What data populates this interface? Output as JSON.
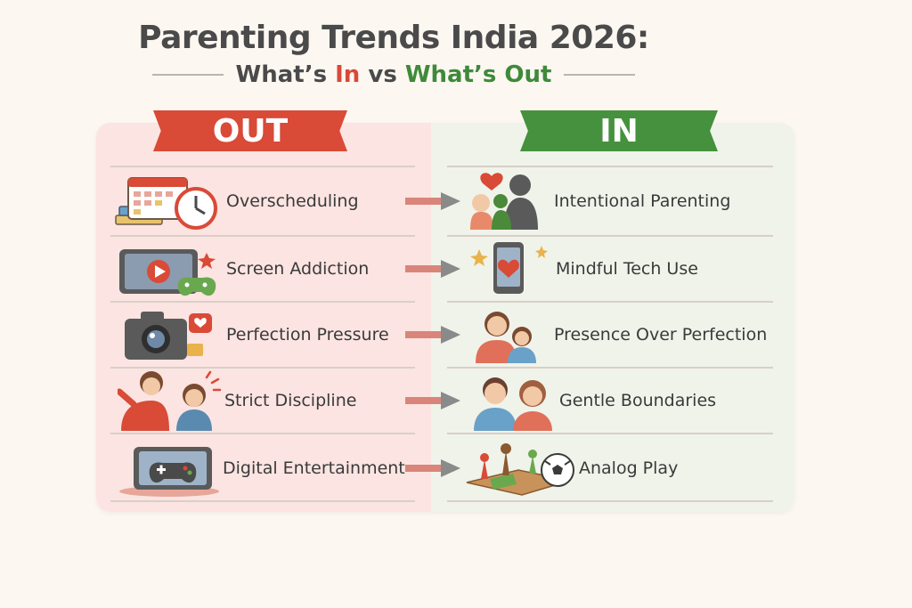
{
  "header": {
    "title": "Parenting Trends India 2026:",
    "subtitle_part1": "What’s ",
    "subtitle_in": "In",
    "subtitle_vs": " vs ",
    "subtitle_out": "What’s Out"
  },
  "columns": {
    "out_label": "OUT",
    "in_label": "IN"
  },
  "rows": [
    {
      "out": "Overscheduling",
      "in": "Intentional Parenting",
      "out_icon": "calendar-clock-books-icon",
      "in_icon": "parent-hugging-child-icon"
    },
    {
      "out": "Screen Addiction",
      "in": "Mindful Tech Use",
      "out_icon": "tablet-video-gamepad-icon",
      "in_icon": "phone-heart-icon"
    },
    {
      "out": "Perfection Pressure",
      "in": "Presence Over Perfection",
      "out_icon": "camera-like-icon",
      "in_icon": "mother-child-cuddle-icon"
    },
    {
      "out": "Strict Discipline",
      "in": "Gentle Boundaries",
      "out_icon": "scolding-parent-icon",
      "in_icon": "happy-parent-child-icon"
    },
    {
      "out": "Digital Entertainment",
      "in": "Analog Play",
      "out_icon": "tablet-game-controller-icon",
      "in_icon": "board-game-ball-icon"
    }
  ],
  "colors": {
    "out_red": "#d94a37",
    "in_green": "#45913d",
    "out_bg": "#fbe4e1",
    "in_bg": "#f0f3ea"
  }
}
